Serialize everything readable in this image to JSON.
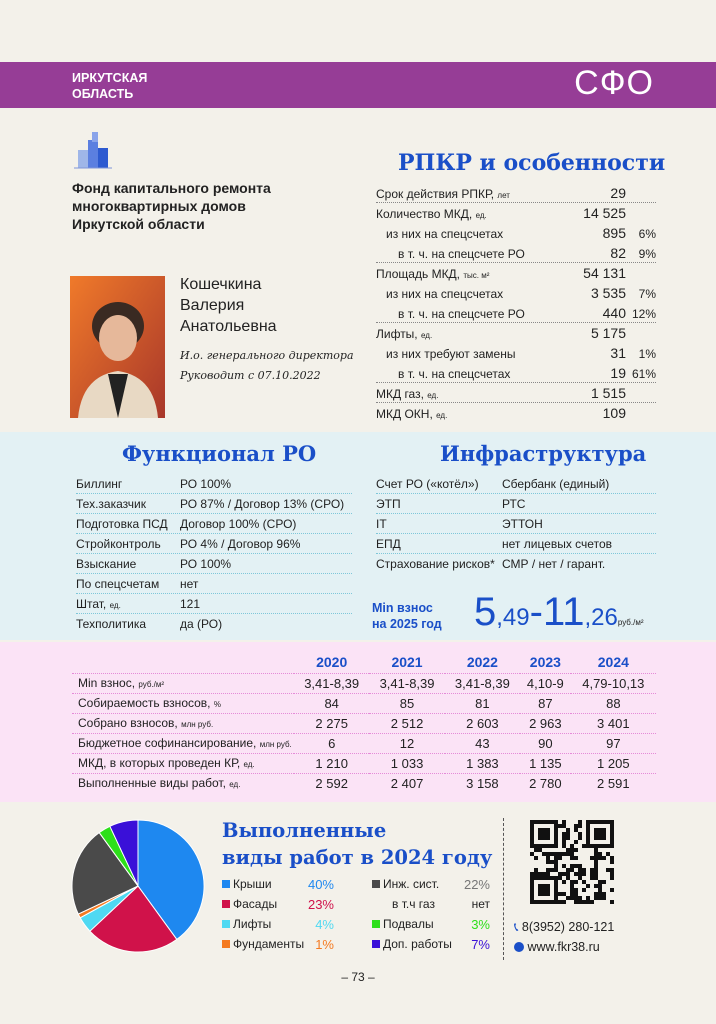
{
  "header": {
    "region_line1": "ИРКУТСКАЯ",
    "region_line2": "ОБЛАСТЬ",
    "district": "СФО",
    "color": "#963d96"
  },
  "org": {
    "logo_icon": "building-logo",
    "name_lines": [
      "Фонд капитального ремонта",
      "многоквартирных домов",
      "Иркутской области"
    ]
  },
  "person": {
    "name_lines": [
      "Кошечкина",
      "Валерия",
      "Анатольевна"
    ],
    "position": "И.о. генерального директора",
    "since": "Руководит с 07.10.2022"
  },
  "rpkr": {
    "title": "РПКР и особенности",
    "rows": [
      {
        "label": "Срок действия РПКР,",
        "unit": "лет",
        "value": "29",
        "pct": "",
        "indent": 0,
        "sep": true
      },
      {
        "label": "Количество МКД,",
        "unit": "ед.",
        "value": "14 525",
        "pct": "",
        "indent": 0,
        "sep": false
      },
      {
        "label": "из них на спецсчетах",
        "unit": "",
        "value": "895",
        "pct": "6%",
        "indent": 1,
        "sep": false
      },
      {
        "label": "в т. ч. на спецсчете РО",
        "unit": "",
        "value": "82",
        "pct": "9%",
        "indent": 2,
        "sep": true
      },
      {
        "label": "Площадь МКД,",
        "unit": "тыс. м²",
        "value": "54 131",
        "pct": "",
        "indent": 0,
        "sep": false
      },
      {
        "label": "из них на спецсчетах",
        "unit": "",
        "value": "3 535",
        "pct": "7%",
        "indent": 1,
        "sep": false
      },
      {
        "label": "в т. ч. на спецсчете РО",
        "unit": "",
        "value": "440",
        "pct": "12%",
        "indent": 2,
        "sep": true
      },
      {
        "label": "Лифты,",
        "unit": "ед.",
        "value": "5 175",
        "pct": "",
        "indent": 0,
        "sep": false
      },
      {
        "label": "из них требуют замены",
        "unit": "",
        "value": "31",
        "pct": "1%",
        "indent": 1,
        "sep": false
      },
      {
        "label": "в т. ч. на спецсчетах",
        "unit": "",
        "value": "19",
        "pct": "61%",
        "indent": 2,
        "sep": true
      },
      {
        "label": "МКД газ,",
        "unit": "ед.",
        "value": "1 515",
        "pct": "",
        "indent": 0,
        "sep": true
      },
      {
        "label": "МКД ОКН,",
        "unit": "ед.",
        "value": "109",
        "pct": "",
        "indent": 0,
        "sep": false
      }
    ]
  },
  "functional": {
    "title": "Функционал РО",
    "rows": [
      {
        "label": "Биллинг",
        "unit": "",
        "value": "РО 100%"
      },
      {
        "label": "Тех.заказчик",
        "unit": "",
        "value": "РО 87% / Договор 13% (СРО)"
      },
      {
        "label": "Подготовка ПСД",
        "unit": "",
        "value": "Договор 100% (СРО)"
      },
      {
        "label": "Стройконтроль",
        "unit": "",
        "value": "РО 4% / Договор 96%"
      },
      {
        "label": "Взыскание",
        "unit": "",
        "value": "РО 100%"
      },
      {
        "label": "По спецсчетам",
        "unit": "",
        "value": "нет"
      },
      {
        "label": "Штат,",
        "unit": "ед.",
        "value": "121"
      },
      {
        "label": "Техполитика",
        "unit": "",
        "value": "да (РО)"
      }
    ]
  },
  "infra": {
    "title": "Инфраструктура",
    "rows": [
      {
        "label": "Счет РО («котёл»)",
        "value": "Сбербанк (единый)"
      },
      {
        "label": "ЭТП",
        "value": "РТС"
      },
      {
        "label": "IT",
        "value": "ЭТТОН"
      },
      {
        "label": "ЕПД",
        "value": "нет лицевых счетов"
      },
      {
        "label": "Страхование рисков*",
        "value": "СМР / нет / гарант."
      }
    ]
  },
  "min_fee": {
    "label_line1": "Min взнос",
    "label_line2": "на 2025 год",
    "v1": "5",
    "v1b": ",49",
    "dash": "-",
    "v2": "11",
    "v2b": ",26",
    "unit": "руб./м²"
  },
  "yearly": {
    "years": [
      "2020",
      "2021",
      "2022",
      "2023",
      "2024"
    ],
    "rows": [
      {
        "label": "Min взнос,",
        "unit": "руб./м²",
        "values": [
          "3,41-8,39",
          "3,41-8,39",
          "3,41-8,39",
          "4,10-9",
          "4,79-10,13"
        ]
      },
      {
        "label": "Собираемость взносов,",
        "unit": "%",
        "values": [
          "84",
          "85",
          "81",
          "87",
          "88"
        ]
      },
      {
        "label": "Собрано взносов,",
        "unit": "млн руб.",
        "values": [
          "2 275",
          "2 512",
          "2 603",
          "2 963",
          "3 401"
        ]
      },
      {
        "label": "Бюджетное софинансирование,",
        "unit": "млн руб.",
        "values": [
          "6",
          "12",
          "43",
          "90",
          "97"
        ]
      },
      {
        "label": "МКД, в которых проведен КР,",
        "unit": "ед.",
        "values": [
          "1 210",
          "1 033",
          "1 383",
          "1 135",
          "1 205"
        ]
      },
      {
        "label": "Выполненные виды работ,",
        "unit": "ед.",
        "values": [
          "2 592",
          "2 407",
          "3 158",
          "2 780",
          "2 591"
        ]
      }
    ]
  },
  "chart_data": {
    "type": "pie",
    "title": "Выполненные виды работ в 2024 году",
    "title_line1": "Выполненные",
    "title_line2": "виды работ в 2024 году",
    "slices": [
      {
        "name": "Крыши",
        "value": 40,
        "label": "40%",
        "color": "#1e88f0"
      },
      {
        "name": "Фасады",
        "value": 23,
        "label": "23%",
        "color": "#d0124a"
      },
      {
        "name": "Лифты",
        "value": 4,
        "label": "4%",
        "color": "#4fd9f2"
      },
      {
        "name": "Фундаменты",
        "value": 1,
        "label": "1%",
        "color": "#f47a20"
      },
      {
        "name": "Инж. сист.",
        "value": 22,
        "label": "22%",
        "color": "#4a4a4a"
      },
      {
        "name": "Подвалы",
        "value": 3,
        "label": "3%",
        "color": "#2ddf1a"
      },
      {
        "name": "Доп. работы",
        "value": 7,
        "label": "7%",
        "color": "#3a10d8"
      }
    ],
    "gas_label": "в т.ч газ",
    "gas_value": "нет"
  },
  "contacts": {
    "phone": "8(3952) 280-121",
    "website": "www.fkr38.ru",
    "qr_icon": "qr-code"
  },
  "footer": {
    "page": "– 73 –"
  }
}
